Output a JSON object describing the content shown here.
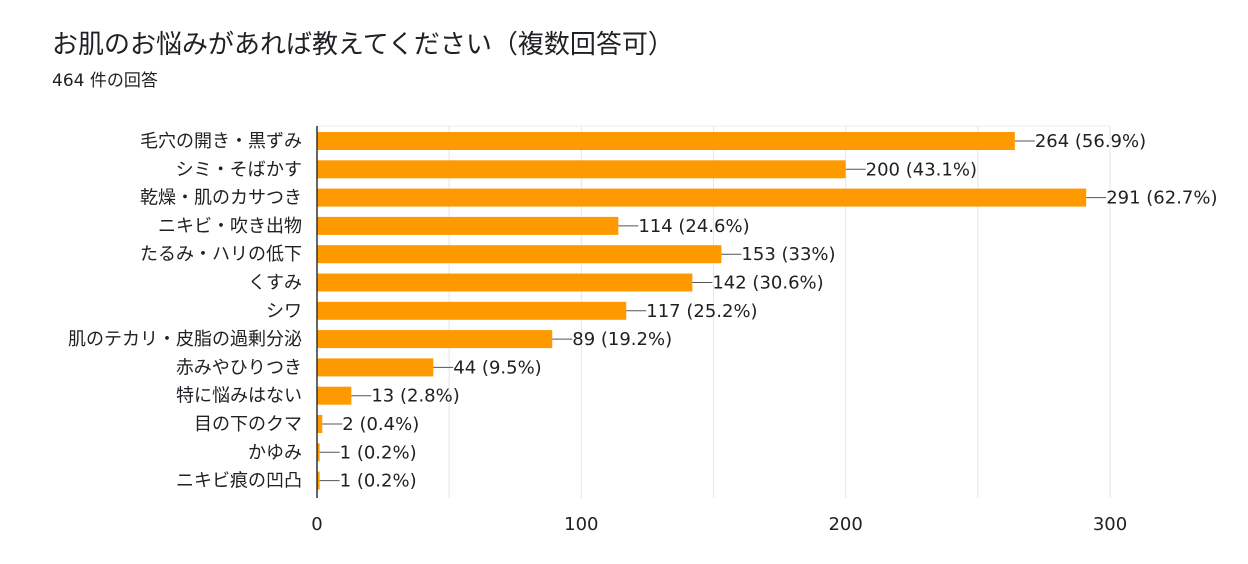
{
  "question": {
    "title": "お肌のお悩みがあれば教えてください（複数回答可）",
    "response_count": "464 件の回答"
  },
  "colors": {
    "bar": "#FF9900",
    "grid": "#e6e6e6",
    "axis": "#333333",
    "text": "#202124"
  },
  "chart_data": {
    "type": "bar",
    "orientation": "horizontal",
    "categories": [
      "毛穴の開き・黒ずみ",
      "シミ・そばかす",
      "乾燥・肌のカサつき",
      "ニキビ・吹き出物",
      "たるみ・ハリの低下",
      "くすみ",
      "シワ",
      "肌のテカリ・皮脂の過剰分泌",
      "赤みやひりつき",
      "特に悩みはない",
      "目の下のクマ",
      "かゆみ",
      "ニキビ痕の凹凸"
    ],
    "values": [
      264,
      200,
      291,
      114,
      153,
      142,
      117,
      89,
      44,
      13,
      2,
      1,
      1
    ],
    "data_labels": [
      "264 (56.9%)",
      "200 (43.1%)",
      "291 (62.7%)",
      "114 (24.6%)",
      "153 (33%)",
      "142 (30.6%)",
      "117 (25.2%)",
      "89 (19.2%)",
      "44 (9.5%)",
      "13 (2.8%)",
      "2 (0.4%)",
      "1 (0.2%)",
      "1 (0.2%)"
    ],
    "xlim": [
      0,
      300
    ],
    "xticks": [
      0,
      100,
      200,
      300
    ],
    "xtick_labels": [
      "0",
      "100",
      "200",
      "300"
    ],
    "grid": true
  }
}
